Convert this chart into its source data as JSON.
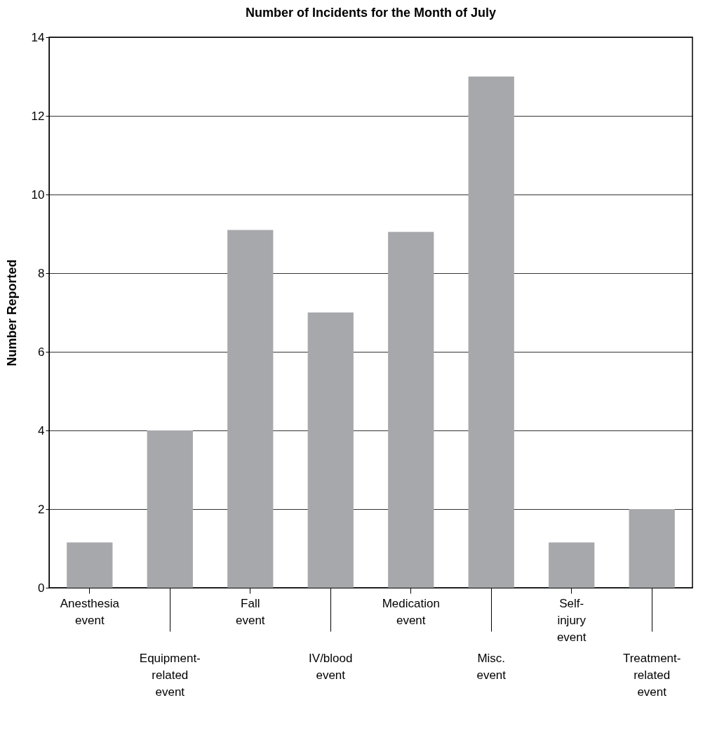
{
  "chart_data": {
    "type": "bar",
    "title": "Number of Incidents for the Month of July",
    "ylabel": "Number Reported",
    "categories": [
      "Anesthesia event",
      "Equipment-related event",
      "Fall event",
      "IV/blood event",
      "Medication event",
      "Misc. event",
      "Self-injury event",
      "Treatment-related event"
    ],
    "values": [
      1.15,
      4,
      9.1,
      7,
      9.05,
      13,
      1.15,
      2
    ],
    "color": "#a7a8ab",
    "ylim": [
      0,
      14
    ],
    "yticks": [
      0,
      2,
      4,
      6,
      8,
      10,
      12,
      14
    ],
    "grid": "y"
  }
}
